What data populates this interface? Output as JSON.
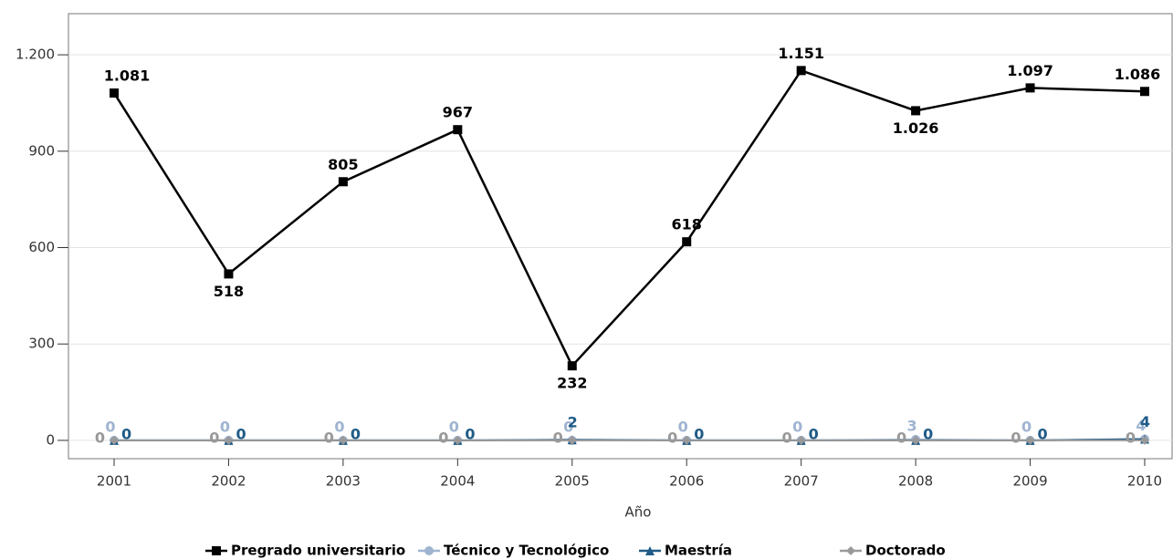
{
  "chart_data": {
    "type": "line",
    "x_label": "Año",
    "categories": [
      "2001",
      "2002",
      "2003",
      "2004",
      "2005",
      "2006",
      "2007",
      "2008",
      "2009",
      "2010"
    ],
    "series": [
      {
        "name": "Pregrado universitario",
        "color": "#000000",
        "marker": "square",
        "values": [
          1081,
          518,
          805,
          967,
          232,
          618,
          1151,
          1026,
          1097,
          1086
        ],
        "value_labels": [
          "1.081",
          "518",
          "805",
          "967",
          "232",
          "618",
          "1.151",
          "1.026",
          "1.097",
          "1.086"
        ]
      },
      {
        "name": "Técnico y Tecnológico",
        "color": "#9fb4d0",
        "marker": "circle",
        "values": [
          0,
          0,
          0,
          0,
          0,
          0,
          0,
          3,
          0,
          4
        ]
      },
      {
        "name": "Maestría",
        "color": "#1f5b87",
        "marker": "triangle",
        "values": [
          0,
          0,
          0,
          0,
          2,
          0,
          0,
          0,
          0,
          4
        ]
      },
      {
        "name": "Doctorado",
        "color": "#999999",
        "marker": "diamond",
        "values": [
          0,
          0,
          0,
          0,
          0,
          0,
          0,
          0,
          0,
          0
        ]
      }
    ],
    "ylim": [
      -57,
      1328
    ],
    "yticks": [
      0,
      300,
      600,
      900,
      {
        "value": 1200,
        "label": "1.200"
      }
    ],
    "grid": true
  }
}
